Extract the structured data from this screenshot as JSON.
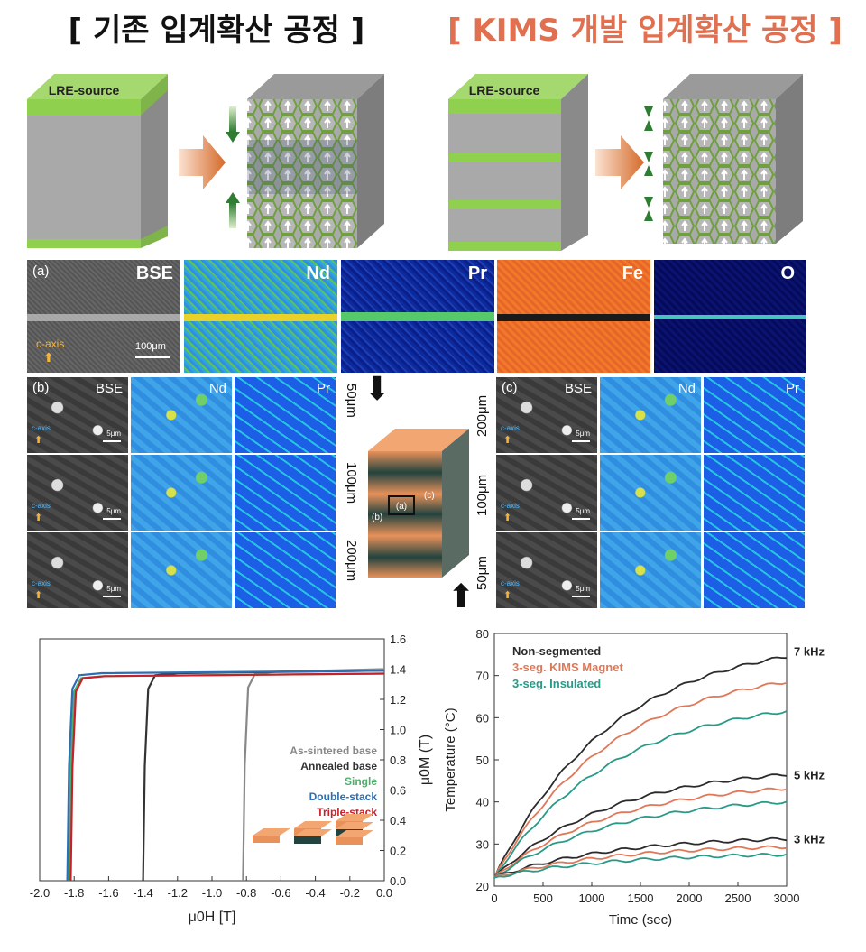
{
  "titles": {
    "left": "[ 기존 입계확산 공정 ]",
    "right": "[ KIMS 개발 입계확산 공정 ]"
  },
  "process": {
    "source_label_left": "LRE-source",
    "source_label_right": "LRE-source"
  },
  "maps_row": {
    "panel_label": "(a)",
    "panels": [
      "BSE",
      "Nd",
      "Pr",
      "Fe",
      "O"
    ],
    "caxis": "c-axis",
    "scale": "100μm"
  },
  "micro_b": {
    "panel_label": "(b)",
    "headers": [
      "BSE",
      "Nd",
      "Pr"
    ],
    "caxis": "c-axis",
    "scale": "5μm",
    "depths": [
      "50μm",
      "100μm",
      "200μm"
    ]
  },
  "micro_c": {
    "panel_label": "(c)",
    "headers": [
      "BSE",
      "Nd",
      "Pr"
    ],
    "caxis": "c-axis",
    "scale": "5μm",
    "depths": [
      "200μm",
      "100μm",
      "50μm"
    ]
  },
  "block": {
    "labels": [
      "(a)",
      "(b)",
      "(c)"
    ]
  },
  "colors": {
    "title_right": "#e07050",
    "green_source": "#8fd14f",
    "orange": "#e8915a",
    "dark_teal": "#22433f",
    "series_gray": "#888888",
    "series_dark": "#333333",
    "series_green": "#4caf6a",
    "series_blue": "#2c6fb7",
    "series_red": "#c8202a",
    "temp_dark": "#2b2b2b",
    "temp_orange": "#e07858",
    "temp_teal": "#2a9a88"
  },
  "chart_data": [
    {
      "type": "line",
      "xlabel": "μ0H [T]",
      "ylabel": "μ0M (T)",
      "xlim": [
        -2.0,
        0.0
      ],
      "ylim": [
        0.0,
        1.6
      ],
      "xticks": [
        "-2.0",
        "-1.8",
        "-1.6",
        "-1.4",
        "-1.2",
        "-1.0",
        "-0.8",
        "-0.6",
        "-0.4",
        "-0.2",
        "0.0"
      ],
      "yticks": [
        "0.0",
        "0.2",
        "0.4",
        "0.6",
        "0.8",
        "1.0",
        "1.2",
        "1.4",
        "1.6"
      ],
      "legend_position": "lower-right",
      "series": [
        {
          "name": "As-sintered base",
          "color": "#888888",
          "coercivity": -0.82,
          "saturation": 1.39
        },
        {
          "name": "Annealed base",
          "color": "#333333",
          "coercivity": -1.4,
          "saturation": 1.38
        },
        {
          "name": "Single",
          "color": "#4caf6a",
          "coercivity": -1.83,
          "saturation": 1.36
        },
        {
          "name": "Double-stack",
          "color": "#2c6fb7",
          "coercivity": -1.84,
          "saturation": 1.38
        },
        {
          "name": "Triple-stack",
          "color": "#c8202a",
          "coercivity": -1.82,
          "saturation": 1.36
        }
      ]
    },
    {
      "type": "line",
      "xlabel": "Time (sec)",
      "ylabel": "Temperature (°C)",
      "xlim": [
        0,
        3000
      ],
      "ylim": [
        20,
        80
      ],
      "xticks": [
        "0",
        "500",
        "1000",
        "1500",
        "2000",
        "2500",
        "3000"
      ],
      "yticks": [
        "20",
        "30",
        "40",
        "50",
        "60",
        "70",
        "80"
      ],
      "legend_position": "top-left",
      "annotations": [
        "7 kHz",
        "5 kHz",
        "3 kHz"
      ],
      "legend": [
        "Non-segmented",
        "3-seg. KIMS Magnet",
        "3-seg. Insulated"
      ],
      "groups": [
        {
          "label": "7 kHz",
          "final": [
            74.5,
            68.5,
            61.5
          ]
        },
        {
          "label": "5 kHz",
          "final": [
            46.5,
            43.2,
            40.0
          ]
        },
        {
          "label": "3 kHz",
          "final": [
            31.2,
            29.3,
            27.5
          ]
        }
      ],
      "start": 22
    }
  ]
}
